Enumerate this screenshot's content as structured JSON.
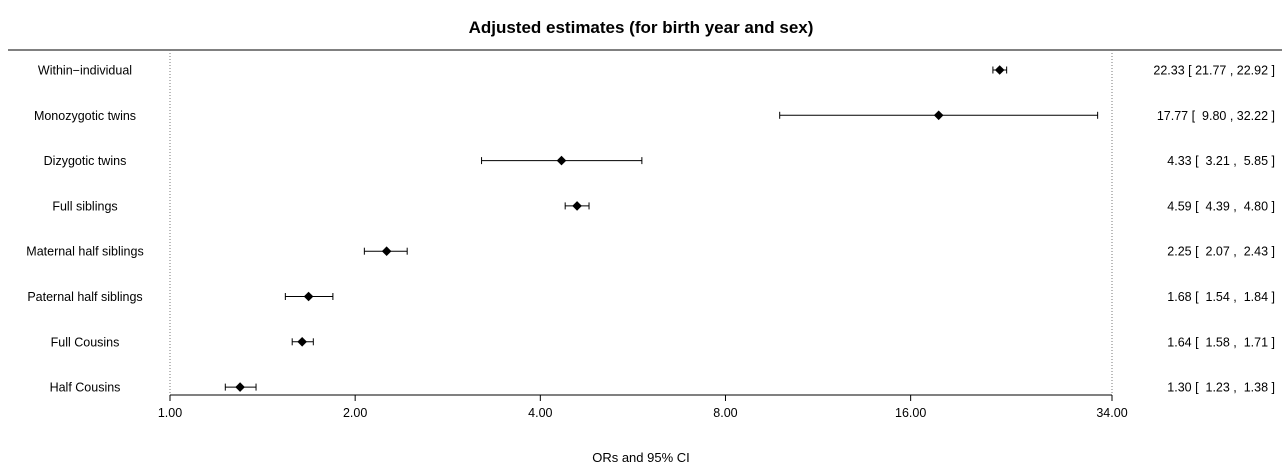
{
  "chart_data": {
    "type": "forest",
    "title": "Adjusted estimates (for birth year and sex)",
    "xlabel": "ORs and 95% CI",
    "x_scale": "log",
    "xlim": [
      1.0,
      34.0
    ],
    "x_ticks": [
      {
        "value": 1,
        "label": "1.00"
      },
      {
        "value": 2,
        "label": "2.00"
      },
      {
        "value": 4,
        "label": "4.00"
      },
      {
        "value": 8,
        "label": "8.00"
      },
      {
        "value": 16,
        "label": "16.00"
      },
      {
        "value": 34,
        "label": "34.00"
      }
    ],
    "rows": [
      {
        "label": "Within−individual",
        "or": 22.33,
        "lower": 21.77,
        "upper": 22.92,
        "ci_text": "22.33 [ 21.77 , 22.92 ]"
      },
      {
        "label": "Monozygotic twins",
        "or": 17.77,
        "lower": 9.8,
        "upper": 32.22,
        "ci_text": "17.77 [  9.80 , 32.22 ]"
      },
      {
        "label": "Dizygotic twins",
        "or": 4.33,
        "lower": 3.21,
        "upper": 5.85,
        "ci_text": "4.33 [  3.21 ,  5.85 ]"
      },
      {
        "label": "Full siblings",
        "or": 4.59,
        "lower": 4.39,
        "upper": 4.8,
        "ci_text": "4.59 [  4.39 ,  4.80 ]"
      },
      {
        "label": "Maternal half siblings",
        "or": 2.25,
        "lower": 2.07,
        "upper": 2.43,
        "ci_text": "2.25 [  2.07 ,  2.43 ]"
      },
      {
        "label": "Paternal half siblings",
        "or": 1.68,
        "lower": 1.54,
        "upper": 1.84,
        "ci_text": "1.68 [  1.54 ,  1.84 ]"
      },
      {
        "label": "Full Cousins",
        "or": 1.64,
        "lower": 1.58,
        "upper": 1.71,
        "ci_text": "1.64 [  1.58 ,  1.71 ]"
      },
      {
        "label": "Half Cousins",
        "or": 1.3,
        "lower": 1.23,
        "upper": 1.38,
        "ci_text": "1.30 [  1.23 ,  1.38 ]"
      }
    ],
    "grid": false,
    "legend": "none"
  }
}
